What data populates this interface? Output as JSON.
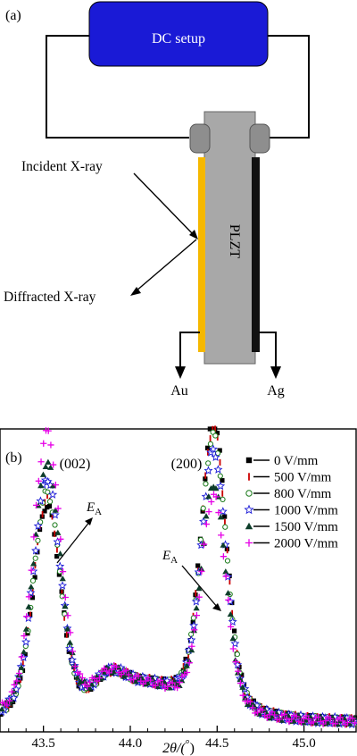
{
  "schematic": {
    "panel_label": "(a)",
    "dc_setup_label": "DC setup",
    "sample_label": "PLZT",
    "incident_label": "Incident X-ray",
    "diffracted_label": "Diffracted X-ray",
    "electrode_left_label": "Au",
    "electrode_right_label": "Ag",
    "colors": {
      "dc_box": "#1a1ad6",
      "sample": "#a8a8a8",
      "gold_electrode": "#f5b800",
      "silver_electrode": "#111111"
    }
  },
  "chart_data": {
    "type": "scatter",
    "panel_label": "(b)",
    "xlabel_main": "2θ/(",
    "xlabel_unit": "°",
    "xlabel_close": ")",
    "xlim": [
      43.25,
      45.3
    ],
    "x_ticks": [
      "43.5",
      "44.0",
      "44.5",
      "45.0"
    ],
    "y_ticks_visible": false,
    "peak_labels": [
      "(002)",
      "(200)"
    ],
    "arrow_label": "E",
    "arrow_label_sub": "A",
    "legend_position": "top-right",
    "series": [
      {
        "name": "0 V/mm",
        "marker": "square-filled",
        "color": "#000000",
        "p1": 0.71,
        "p2": 0.98
      },
      {
        "name": "500 V/mm",
        "marker": "bar",
        "color": "#cc0000",
        "p1": 0.73,
        "p2": 0.96
      },
      {
        "name": "800 V/mm",
        "marker": "circle-open",
        "color": "#1a7a1a",
        "p1": 0.75,
        "p2": 0.93
      },
      {
        "name": "1000 V/mm",
        "marker": "star-open",
        "color": "#1a1ad6",
        "p1": 0.8,
        "p2": 0.88
      },
      {
        "name": "1500 V/mm",
        "marker": "triangle-filled",
        "color": "#0d3d2a",
        "p1": 0.85,
        "p2": 0.77
      },
      {
        "name": "2000 V/mm",
        "marker": "plus",
        "color": "#e600e6",
        "p1": 0.95,
        "p2": 0.73
      }
    ]
  }
}
